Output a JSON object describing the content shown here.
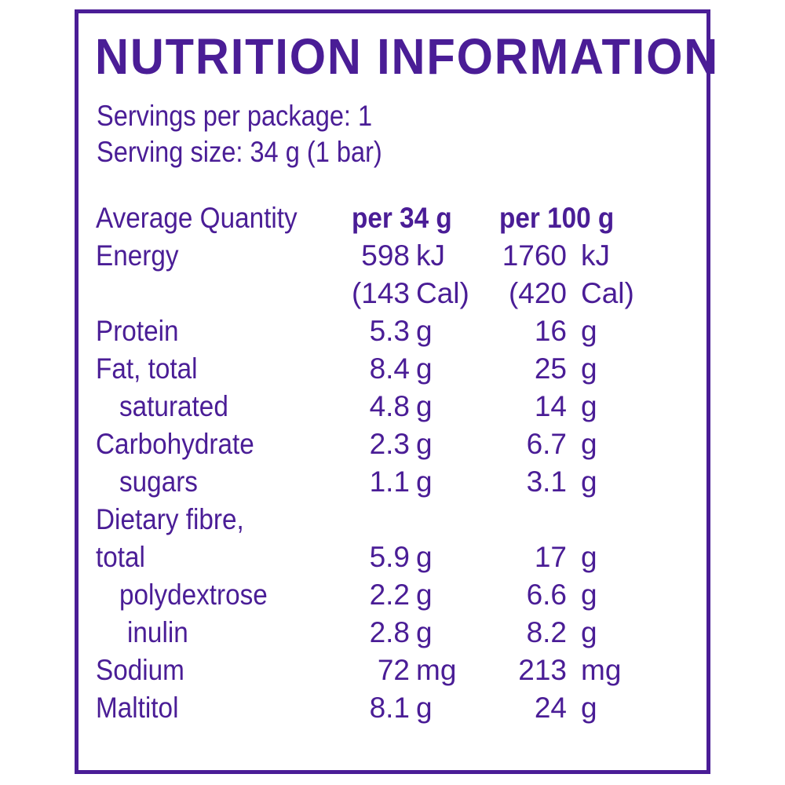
{
  "title": "NUTRITION INFORMATION",
  "servings_per_package": "Servings per package: 1",
  "serving_size": "Serving size: 34 g (1 bar)",
  "header": {
    "label": "Average Quantity",
    "col1": "per 34 g",
    "col2": "per 100 g"
  },
  "rows": [
    {
      "label": "Energy",
      "v1": "598",
      "u1": "kJ",
      "v2": "1760",
      "u2": "kJ"
    },
    {
      "label": "",
      "v1": "(143",
      "u1": "Cal)",
      "v2": "(420",
      "u2": "Cal)"
    },
    {
      "label": "Protein",
      "v1": "5.3",
      "u1": "g",
      "v2": "16",
      "u2": "g"
    },
    {
      "label": "Fat, total",
      "v1": "8.4",
      "u1": "g",
      "v2": "25",
      "u2": "g"
    },
    {
      "label": "saturated",
      "v1": "4.8",
      "u1": "g",
      "v2": "14",
      "u2": "g"
    },
    {
      "label": "Carbohydrate",
      "v1": "2.3",
      "u1": "g",
      "v2": "6.7",
      "u2": "g"
    },
    {
      "label": "sugars",
      "v1": "1.1",
      "u1": "g",
      "v2": "3.1",
      "u2": "g"
    },
    {
      "label": "Dietary fibre,",
      "v1": "",
      "u1": "",
      "v2": "",
      "u2": ""
    },
    {
      "label": "total",
      "v1": "5.9",
      "u1": "g",
      "v2": "17",
      "u2": "g"
    },
    {
      "label": "polydextrose",
      "v1": "2.2",
      "u1": "g",
      "v2": "6.6",
      "u2": "g"
    },
    {
      "label": "inulin",
      "v1": "2.8",
      "u1": "g",
      "v2": "8.2",
      "u2": "g"
    },
    {
      "label": "Sodium",
      "v1": "72",
      "u1": "mg",
      "v2": "213",
      "u2": "mg"
    },
    {
      "label": "Maltitol",
      "v1": "8.1",
      "u1": "g",
      "v2": "24",
      "u2": "g"
    }
  ],
  "colors": {
    "text": "#4a1d96",
    "border": "#4a1d96",
    "background": "#ffffff"
  }
}
